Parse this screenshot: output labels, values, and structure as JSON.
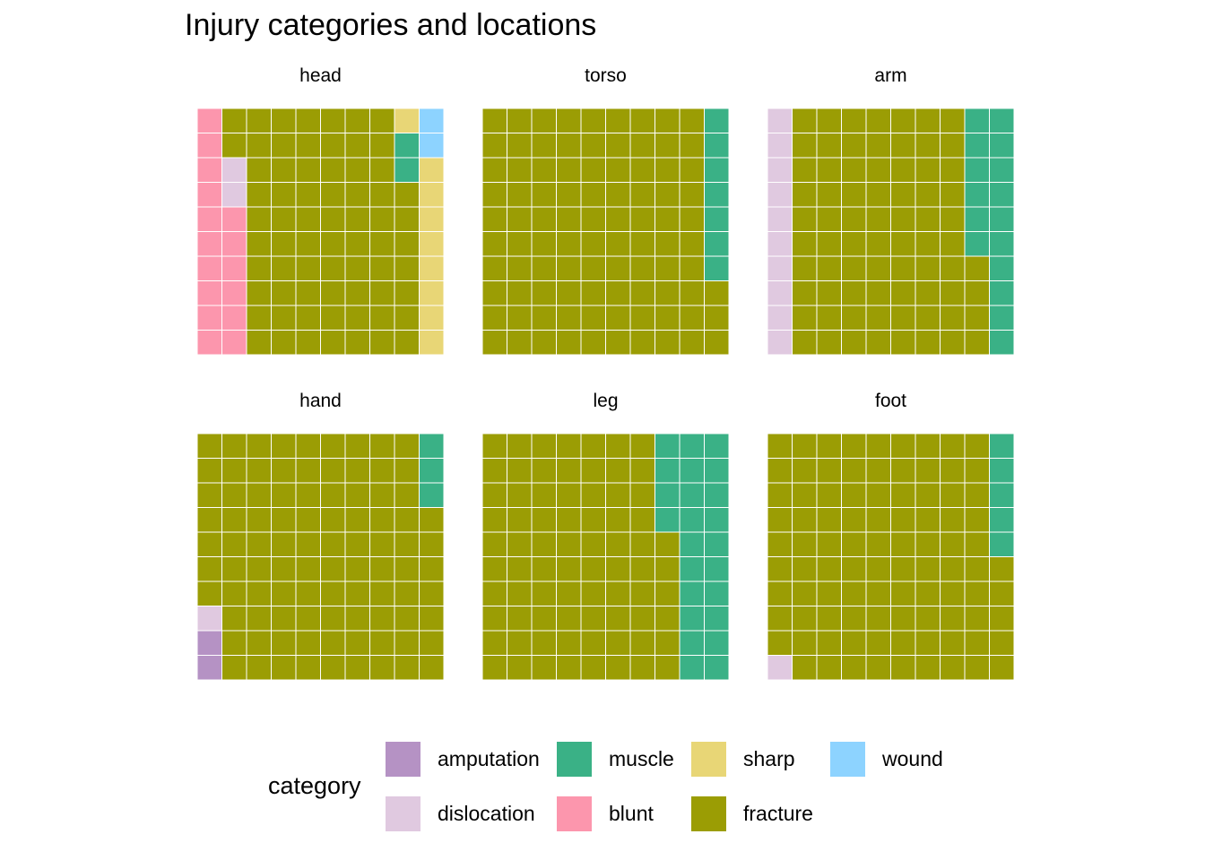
{
  "chart_data": {
    "type": "waffle",
    "title": "Injury categories and locations",
    "grid": "10x10 per facet, filled column-wise from bottom-left",
    "legend": {
      "title": "category",
      "placement": "bottom",
      "entries": [
        {
          "name": "amputation",
          "color": "#B592C4"
        },
        {
          "name": "dislocation",
          "color": "#E0C9E0"
        },
        {
          "name": "muscle",
          "color": "#3AB186"
        },
        {
          "name": "blunt",
          "color": "#FC96AD"
        },
        {
          "name": "sharp",
          "color": "#E8D676"
        },
        {
          "name": "fracture",
          "color": "#9B9D04"
        },
        {
          "name": "wound",
          "color": "#8DD3FF"
        }
      ]
    },
    "category_order": [
      "amputation",
      "blunt",
      "dislocation",
      "fracture",
      "muscle",
      "sharp",
      "wound"
    ],
    "facets": [
      {
        "label": "head",
        "counts": {
          "amputation": 0,
          "blunt": 16,
          "dislocation": 2,
          "fracture": 69,
          "muscle": 2,
          "sharp": 9,
          "wound": 2
        }
      },
      {
        "label": "torso",
        "counts": {
          "amputation": 0,
          "blunt": 0,
          "dislocation": 0,
          "fracture": 93,
          "muscle": 7,
          "sharp": 0,
          "wound": 0
        }
      },
      {
        "label": "arm",
        "counts": {
          "amputation": 0,
          "blunt": 0,
          "dislocation": 10,
          "fracture": 74,
          "muscle": 16,
          "sharp": 0,
          "wound": 0
        }
      },
      {
        "label": "hand",
        "counts": {
          "amputation": 2,
          "blunt": 0,
          "dislocation": 1,
          "fracture": 94,
          "muscle": 3,
          "sharp": 0,
          "wound": 0
        }
      },
      {
        "label": "leg",
        "counts": {
          "amputation": 0,
          "blunt": 0,
          "dislocation": 0,
          "fracture": 76,
          "muscle": 24,
          "sharp": 0,
          "wound": 0
        }
      },
      {
        "label": "foot",
        "counts": {
          "amputation": 0,
          "blunt": 0,
          "dislocation": 1,
          "fracture": 94,
          "muscle": 5,
          "sharp": 0,
          "wound": 0
        }
      }
    ]
  }
}
